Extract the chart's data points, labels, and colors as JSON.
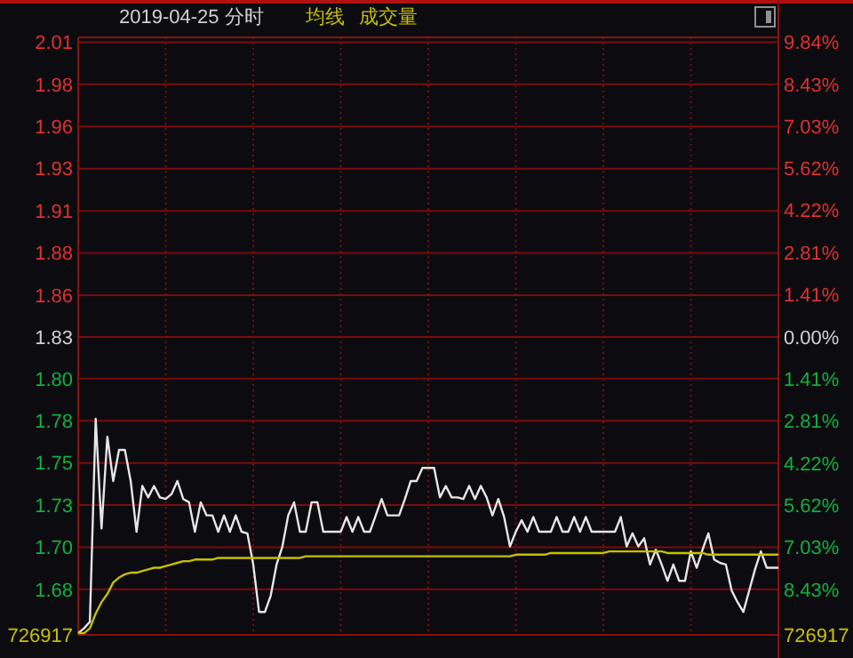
{
  "chart_data": {
    "type": "line",
    "title": "2019-04-25 分时",
    "annotations": [
      "成交量",
      "726917",
      "726917"
    ],
    "grid": true,
    "categories": [
      null,
      null,
      null,
      null,
      null,
      null,
      null,
      null,
      null,
      null,
      null,
      null,
      null,
      null,
      null,
      null,
      null,
      null,
      null,
      null,
      null,
      null,
      null,
      null,
      null,
      null,
      null,
      null,
      null,
      null,
      null,
      null,
      null,
      null,
      null,
      null,
      null,
      null,
      null,
      null,
      null,
      null,
      null,
      null,
      null,
      null,
      null,
      null,
      null,
      null,
      null,
      null,
      null,
      null,
      null,
      null,
      null,
      null,
      null,
      null,
      null,
      null,
      null,
      null,
      null,
      null,
      null,
      null,
      null,
      null,
      null,
      null,
      null,
      null,
      null,
      null,
      null,
      null,
      null,
      null,
      null,
      null,
      null,
      null,
      null,
      null,
      null,
      null,
      null,
      null,
      null,
      null,
      null,
      null,
      null,
      null,
      null,
      null,
      null,
      null,
      null,
      null,
      null,
      null,
      null,
      null,
      null,
      null,
      null,
      null,
      null,
      null,
      null,
      null,
      null,
      null,
      null,
      null,
      null,
      null,
      null
    ],
    "ylim": [
      1.648,
      2.013
    ],
    "yticks": [
      {
        "value": 1.6758,
        "label": "1.68"
      },
      {
        "value": 1.7015,
        "label": "1.70"
      },
      {
        "value": 1.7273,
        "label": "1.73"
      },
      {
        "value": 1.753,
        "label": "1.75"
      },
      {
        "value": 1.7788,
        "label": "1.78"
      },
      {
        "value": 1.8045,
        "label": "1.80"
      },
      {
        "value": 1.83,
        "label": "1.83"
      },
      {
        "value": 1.8555,
        "label": "1.86"
      },
      {
        "value": 1.8813,
        "label": "1.88"
      },
      {
        "value": 1.907,
        "label": "1.91"
      },
      {
        "value": 1.9328,
        "label": "1.93"
      },
      {
        "value": 1.9585,
        "label": "1.96"
      },
      {
        "value": 1.9843,
        "label": "1.98"
      },
      {
        "value": 2.01,
        "label": "2.01"
      }
    ],
    "y2lim": [
      -9.95,
      10.0
    ],
    "y2ticks": [
      {
        "value": -8.43,
        "label": "8.43%"
      },
      {
        "value": -7.03,
        "label": "7.03%"
      },
      {
        "value": -5.62,
        "label": "5.62%"
      },
      {
        "value": -4.22,
        "label": "4.22%"
      },
      {
        "value": -2.81,
        "label": "2.81%"
      },
      {
        "value": -1.41,
        "label": "1.41%"
      },
      {
        "value": 0,
        "label": "0.00%"
      },
      {
        "value": 1.41,
        "label": "1.41%"
      },
      {
        "value": 2.81,
        "label": "2.81%"
      },
      {
        "value": 4.22,
        "label": "4.22%"
      },
      {
        "value": 5.62,
        "label": "5.62%"
      },
      {
        "value": 7.03,
        "label": "7.03%"
      },
      {
        "value": 8.43,
        "label": "8.43%"
      },
      {
        "value": 9.84,
        "label": "9.84%"
      }
    ],
    "series": [
      {
        "color": "#e6e6e6",
        "values": [
          1.649,
          1.652,
          1.656,
          1.78,
          1.713,
          1.769,
          1.742,
          1.761,
          1.761,
          1.742,
          1.711,
          1.739,
          1.732,
          1.739,
          1.732,
          1.731,
          1.734,
          1.742,
          1.731,
          1.729,
          1.711,
          1.729,
          1.721,
          1.721,
          1.711,
          1.721,
          1.711,
          1.721,
          1.711,
          1.71,
          1.691,
          1.662,
          1.662,
          1.672,
          1.691,
          1.702,
          1.721,
          1.729,
          1.711,
          1.711,
          1.729,
          1.729,
          1.711,
          1.711,
          1.711,
          1.711,
          1.72,
          1.711,
          1.72,
          1.711,
          1.711,
          1.721,
          1.731,
          1.721,
          1.721,
          1.721,
          1.731,
          1.742,
          1.742,
          1.75,
          1.75,
          1.75,
          1.732,
          1.739,
          1.732,
          1.732,
          1.731,
          1.739,
          1.731,
          1.739,
          1.732,
          1.721,
          1.731,
          1.72,
          1.702,
          1.711,
          1.718,
          1.711,
          1.72,
          1.711,
          1.711,
          1.711,
          1.72,
          1.711,
          1.711,
          1.72,
          1.711,
          1.72,
          1.711,
          1.711,
          1.711,
          1.711,
          1.711,
          1.72,
          1.702,
          1.71,
          1.702,
          1.707,
          1.691,
          1.7,
          1.691,
          1.681,
          1.691,
          1.681,
          1.681,
          1.699,
          1.689,
          1.7,
          1.71,
          1.694,
          1.692,
          1.691,
          1.675,
          1.668,
          1.662,
          1.675,
          1.688,
          1.699,
          1.689,
          1.689,
          1.689
        ]
      },
      {
        "name": "均线",
        "color": "#c8c000",
        "values": [
          1.649,
          1.649,
          1.652,
          1.661,
          1.668,
          1.673,
          1.68,
          1.683,
          1.685,
          1.686,
          1.686,
          1.687,
          1.688,
          1.689,
          1.689,
          1.69,
          1.691,
          1.692,
          1.693,
          1.693,
          1.694,
          1.694,
          1.694,
          1.694,
          1.695,
          1.695,
          1.695,
          1.695,
          1.695,
          1.695,
          1.695,
          1.695,
          1.695,
          1.695,
          1.695,
          1.695,
          1.695,
          1.695,
          1.695,
          1.696,
          1.696,
          1.696,
          1.696,
          1.696,
          1.696,
          1.696,
          1.696,
          1.696,
          1.696,
          1.696,
          1.696,
          1.696,
          1.696,
          1.696,
          1.696,
          1.696,
          1.696,
          1.696,
          1.696,
          1.696,
          1.696,
          1.696,
          1.696,
          1.696,
          1.696,
          1.696,
          1.696,
          1.696,
          1.696,
          1.696,
          1.696,
          1.696,
          1.696,
          1.696,
          1.696,
          1.697,
          1.697,
          1.697,
          1.697,
          1.697,
          1.697,
          1.698,
          1.698,
          1.698,
          1.698,
          1.698,
          1.698,
          1.698,
          1.698,
          1.698,
          1.698,
          1.699,
          1.699,
          1.699,
          1.699,
          1.699,
          1.699,
          1.699,
          1.699,
          1.699,
          1.699,
          1.698,
          1.698,
          1.698,
          1.698,
          1.698,
          1.698,
          1.698,
          1.697,
          1.697,
          1.697,
          1.697,
          1.697,
          1.697,
          1.697,
          1.697,
          1.697,
          1.697,
          1.697,
          1.697,
          1.697
        ]
      }
    ]
  }
}
